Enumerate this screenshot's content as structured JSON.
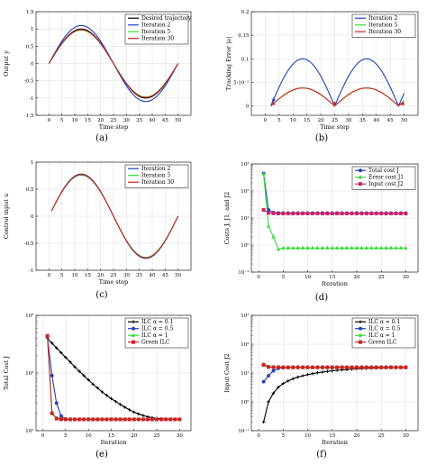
{
  "chart_data": [
    {
      "id": "a",
      "type": "line",
      "caption": "(a)",
      "xlabel": "Time step",
      "ylabel": "Output y",
      "xlim": [
        -5,
        55
      ],
      "ylim": [
        -1.5,
        1.5
      ],
      "xticks": [
        0,
        5,
        10,
        15,
        20,
        25,
        30,
        35,
        40,
        45,
        50
      ],
      "yticks": [
        -1.5,
        -1,
        -0.5,
        0,
        0.5,
        1,
        1.5
      ],
      "grid": true,
      "legend_position": "top-right",
      "series": [
        {
          "name": "Desired trajectory",
          "color": "#000000",
          "amp": 1.0
        },
        {
          "name": "Iteration 2",
          "color": "#1f3fbf",
          "amp": 1.1
        },
        {
          "name": "Iteration 5",
          "color": "#33dd33",
          "amp": 0.97
        },
        {
          "name": "Iteration 30",
          "color": "#cc2222",
          "amp": 0.98
        }
      ]
    },
    {
      "id": "b",
      "type": "line",
      "caption": "(b)",
      "xlabel": "Time step",
      "ylabel": "Tracking Error |e|",
      "xlim": [
        -5,
        55
      ],
      "ylim": [
        -0.02,
        0.2
      ],
      "xticks": [
        0,
        5,
        10,
        15,
        20,
        25,
        30,
        35,
        40,
        45,
        50
      ],
      "yticks": [
        0,
        0.05,
        0.1,
        0.15,
        0.2
      ],
      "ytick_labels": [
        "0",
        "5·10⁻²",
        "0.1",
        "0.15",
        "0.2"
      ],
      "grid": true,
      "legend_position": "top-right",
      "series": [
        {
          "name": "Iteration 2",
          "color": "#1f3fbf",
          "amp": 0.1
        },
        {
          "name": "Iteration 5",
          "color": "#33dd33",
          "amp": 0.038
        },
        {
          "name": "Iteration 30",
          "color": "#cc2222",
          "amp": 0.038
        }
      ]
    },
    {
      "id": "c",
      "type": "line",
      "caption": "(c)",
      "xlabel": "Time step",
      "ylabel": "Control input u",
      "xlim": [
        -5,
        55
      ],
      "ylim": [
        -1,
        1
      ],
      "xticks": [
        0,
        5,
        10,
        15,
        20,
        25,
        30,
        35,
        40,
        45,
        50
      ],
      "yticks": [
        -1,
        -0.5,
        0,
        0.5,
        1
      ],
      "grid": true,
      "legend_position": "top-right",
      "series": [
        {
          "name": "Iteration 2",
          "color": "#1f3fbf",
          "amp": 0.78
        },
        {
          "name": "Iteration 5",
          "color": "#33dd33",
          "amp": 0.76
        },
        {
          "name": "Iteration 30",
          "color": "#cc2222",
          "amp": 0.77
        }
      ]
    },
    {
      "id": "d",
      "type": "line",
      "caption": "(d)",
      "xlabel": "Iteration",
      "ylabel": "Costs J, J1, and J2",
      "xlim": [
        -1.5,
        32.5
      ],
      "ylim": [
        0.1,
        1000
      ],
      "yscale": "log",
      "xticks": [
        0,
        5,
        10,
        15,
        20,
        25,
        30
      ],
      "yticks": [
        0.1,
        1,
        10,
        100,
        1000
      ],
      "ytick_labels": [
        "10⁻¹",
        "10⁰",
        "10¹",
        "10²",
        "10³"
      ],
      "grid": true,
      "legend_position": "top-right",
      "series": [
        {
          "name": "Total cost J",
          "color": "#1f3fbf",
          "marker": "circle",
          "x": [
            1,
            2,
            3,
            4,
            5,
            6,
            7,
            8,
            9,
            10,
            11,
            12,
            13,
            14,
            15,
            16,
            17,
            18,
            19,
            20,
            21,
            22,
            23,
            24,
            25,
            26,
            27,
            28,
            29,
            30
          ],
          "y": [
            450,
            20,
            16,
            15.5,
            15.3,
            15.2,
            15.2,
            15.2,
            15.2,
            15.2,
            15.2,
            15.2,
            15.2,
            15.2,
            15.2,
            15.2,
            15.2,
            15.2,
            15.2,
            15.2,
            15.2,
            15.2,
            15.2,
            15.2,
            15.2,
            15.2,
            15.2,
            15.2,
            15.2,
            15.2
          ]
        },
        {
          "name": "Error cost J1",
          "color": "#33dd33",
          "marker": "triangle",
          "x": [
            1,
            2,
            3,
            4,
            5,
            6,
            7,
            8,
            9,
            10,
            11,
            12,
            13,
            14,
            15,
            16,
            17,
            18,
            19,
            20,
            21,
            22,
            23,
            24,
            25,
            26,
            27,
            28,
            29,
            30
          ],
          "y": [
            430,
            5,
            2,
            0.7,
            0.78,
            0.78,
            0.78,
            0.78,
            0.78,
            0.78,
            0.78,
            0.78,
            0.78,
            0.78,
            0.78,
            0.78,
            0.78,
            0.78,
            0.78,
            0.78,
            0.78,
            0.78,
            0.78,
            0.78,
            0.78,
            0.78,
            0.78,
            0.78,
            0.78,
            0.78
          ]
        },
        {
          "name": "Input cost J2",
          "color": "#cc2266",
          "marker": "square",
          "x": [
            1,
            2,
            3,
            4,
            5,
            6,
            7,
            8,
            9,
            10,
            11,
            12,
            13,
            14,
            15,
            16,
            17,
            18,
            19,
            20,
            21,
            22,
            23,
            24,
            25,
            26,
            27,
            28,
            29,
            30
          ],
          "y": [
            20,
            15.5,
            15,
            14.8,
            14.8,
            14.8,
            14.8,
            14.8,
            14.8,
            14.8,
            14.8,
            14.8,
            14.8,
            14.8,
            14.8,
            14.8,
            14.8,
            14.8,
            14.8,
            14.8,
            14.8,
            14.8,
            14.8,
            14.8,
            14.8,
            14.8,
            14.8,
            14.8,
            14.8,
            14.8
          ]
        }
      ]
    },
    {
      "id": "e",
      "type": "line",
      "caption": "(e)",
      "xlabel": "Iteration",
      "ylabel": "Total Cost J",
      "xlim": [
        -1.5,
        32.5
      ],
      "ylim": [
        10,
        1000
      ],
      "yscale": "log",
      "xticks": [
        0,
        5,
        10,
        15,
        20,
        25,
        30
      ],
      "yticks": [
        10,
        100,
        1000
      ],
      "ytick_labels": [
        "10¹",
        "10²",
        "10³"
      ],
      "grid": true,
      "legend_position": "top-right",
      "series": [
        {
          "name": "ILC α = 0.1",
          "color": "#000000",
          "marker": "plus",
          "x": [
            1,
            2,
            3,
            4,
            5,
            6,
            7,
            8,
            9,
            10,
            11,
            12,
            13,
            14,
            15,
            16,
            17,
            18,
            19,
            20,
            21,
            22,
            23,
            24,
            25,
            26,
            27,
            28,
            29,
            30
          ],
          "y": [
            400,
            330,
            272,
            225,
            186,
            155,
            128,
            107,
            90,
            76,
            64,
            55,
            47,
            41,
            36,
            32,
            28.5,
            25.5,
            23,
            21,
            19.5,
            18.3,
            17.4,
            16.8,
            16.4,
            16.1,
            15.9,
            15.8,
            15.7,
            15.7
          ]
        },
        {
          "name": "ILC α = 0.5",
          "color": "#1f3fbf",
          "marker": "circle",
          "x": [
            1,
            2,
            3,
            4,
            5,
            6,
            7,
            8,
            9,
            10,
            11,
            12,
            13,
            14,
            15,
            16,
            17,
            18,
            19,
            20,
            21,
            22,
            23,
            24,
            25,
            26,
            27,
            28,
            29,
            30
          ],
          "y": [
            420,
            90,
            30,
            18,
            16,
            15.7,
            15.7,
            15.7,
            15.7,
            15.7,
            15.7,
            15.7,
            15.7,
            15.7,
            15.7,
            15.7,
            15.7,
            15.7,
            15.7,
            15.7,
            15.7,
            15.7,
            15.7,
            15.7,
            15.7,
            15.7,
            15.7,
            15.7,
            15.7,
            15.7
          ]
        },
        {
          "name": "ILC α = 1",
          "color": "#33dd33",
          "marker": "triangle",
          "x": [
            1,
            2,
            3,
            4,
            5,
            6,
            7,
            8,
            9,
            10,
            11,
            12,
            13,
            14,
            15,
            16,
            17,
            18,
            19,
            20,
            21,
            22,
            23,
            24,
            25,
            26,
            27,
            28,
            29,
            30
          ],
          "y": [
            430,
            20,
            16.5,
            16,
            15.8,
            15.7,
            15.7,
            15.7,
            15.7,
            15.7,
            15.7,
            15.7,
            15.7,
            15.7,
            15.7,
            15.7,
            15.7,
            15.7,
            15.7,
            15.7,
            15.7,
            15.7,
            15.7,
            15.7,
            15.7,
            15.7,
            15.7,
            15.7,
            15.7,
            15.7
          ]
        },
        {
          "name": "Green ILC",
          "color": "#cc2222",
          "marker": "square",
          "x": [
            1,
            2,
            3,
            4,
            5,
            6,
            7,
            8,
            9,
            10,
            11,
            12,
            13,
            14,
            15,
            16,
            17,
            18,
            19,
            20,
            21,
            22,
            23,
            24,
            25,
            26,
            27,
            28,
            29,
            30
          ],
          "y": [
            440,
            20,
            16.2,
            15.8,
            15.7,
            15.7,
            15.7,
            15.7,
            15.7,
            15.7,
            15.7,
            15.7,
            15.7,
            15.7,
            15.7,
            15.7,
            15.7,
            15.7,
            15.7,
            15.7,
            15.7,
            15.7,
            15.7,
            15.7,
            15.7,
            15.7,
            15.7,
            15.7,
            15.7,
            15.7
          ]
        }
      ]
    },
    {
      "id": "f",
      "type": "line",
      "caption": "(f)",
      "xlabel": "Iteration",
      "ylabel": "Input Cost J2",
      "xlim": [
        -1.5,
        32.5
      ],
      "ylim": [
        0.1,
        1000
      ],
      "yscale": "log",
      "xticks": [
        0,
        5,
        10,
        15,
        20,
        25,
        30
      ],
      "yticks": [
        0.1,
        1,
        10,
        100,
        1000
      ],
      "ytick_labels": [
        "10⁻¹",
        "10⁰",
        "10¹",
        "10²",
        "10³"
      ],
      "grid": true,
      "legend_position": "top-right",
      "series": [
        {
          "name": "ILC α = 0.1",
          "color": "#000000",
          "marker": "plus",
          "x": [
            1,
            2,
            3,
            4,
            5,
            6,
            7,
            8,
            9,
            10,
            11,
            12,
            13,
            14,
            15,
            16,
            17,
            18,
            19,
            20,
            21,
            22,
            23,
            24,
            25,
            26,
            27,
            28,
            29,
            30
          ],
          "y": [
            0.2,
            1.0,
            2.0,
            3.2,
            4.3,
            5.3,
            6.3,
            7.2,
            8.0,
            8.8,
            9.5,
            10.2,
            10.8,
            11.4,
            11.9,
            12.4,
            12.8,
            13.2,
            13.6,
            13.9,
            14.2,
            14.5,
            14.7,
            14.9,
            15.1,
            15.3,
            15.4,
            15.5,
            15.6,
            15.7
          ]
        },
        {
          "name": "ILC α = 0.5",
          "color": "#1f3fbf",
          "marker": "circle",
          "x": [
            1,
            2,
            3,
            4,
            5,
            6,
            7,
            8,
            9,
            10,
            11,
            12,
            13,
            14,
            15,
            16,
            17,
            18,
            19,
            20,
            21,
            22,
            23,
            24,
            25,
            26,
            27,
            28,
            29,
            30
          ],
          "y": [
            5,
            8,
            12,
            14.5,
            15.3,
            15.6,
            15.7,
            15.7,
            15.7,
            15.7,
            15.7,
            15.7,
            15.7,
            15.7,
            15.7,
            15.7,
            15.7,
            15.7,
            15.7,
            15.7,
            15.7,
            15.7,
            15.7,
            15.7,
            15.7,
            15.7,
            15.7,
            15.7,
            15.7,
            15.7
          ]
        },
        {
          "name": "ILC α = 1",
          "color": "#33dd33",
          "marker": "triangle",
          "x": [
            1,
            2,
            3,
            4,
            5,
            6,
            7,
            8,
            9,
            10,
            11,
            12,
            13,
            14,
            15,
            16,
            17,
            18,
            19,
            20,
            21,
            22,
            23,
            24,
            25,
            26,
            27,
            28,
            29,
            30
          ],
          "y": [
            20,
            16.5,
            16,
            15.8,
            15.7,
            15.7,
            15.7,
            15.7,
            15.7,
            15.7,
            15.7,
            15.7,
            15.7,
            15.7,
            15.7,
            15.7,
            15.7,
            15.7,
            15.7,
            15.7,
            15.7,
            15.7,
            15.7,
            15.7,
            15.7,
            15.7,
            15.7,
            15.7,
            15.7,
            15.7
          ]
        },
        {
          "name": "Green ILC",
          "color": "#cc2222",
          "marker": "square",
          "x": [
            1,
            2,
            3,
            4,
            5,
            6,
            7,
            8,
            9,
            10,
            11,
            12,
            13,
            14,
            15,
            16,
            17,
            18,
            19,
            20,
            21,
            22,
            23,
            24,
            25,
            26,
            27,
            28,
            29,
            30
          ],
          "y": [
            19,
            16.2,
            15.9,
            15.8,
            15.7,
            15.7,
            15.7,
            15.7,
            15.7,
            15.7,
            15.7,
            15.7,
            15.7,
            15.7,
            15.7,
            15.7,
            15.7,
            15.7,
            15.7,
            15.7,
            15.7,
            15.7,
            15.7,
            15.7,
            15.7,
            15.7,
            15.7,
            15.7,
            15.7,
            15.7
          ]
        }
      ]
    }
  ]
}
